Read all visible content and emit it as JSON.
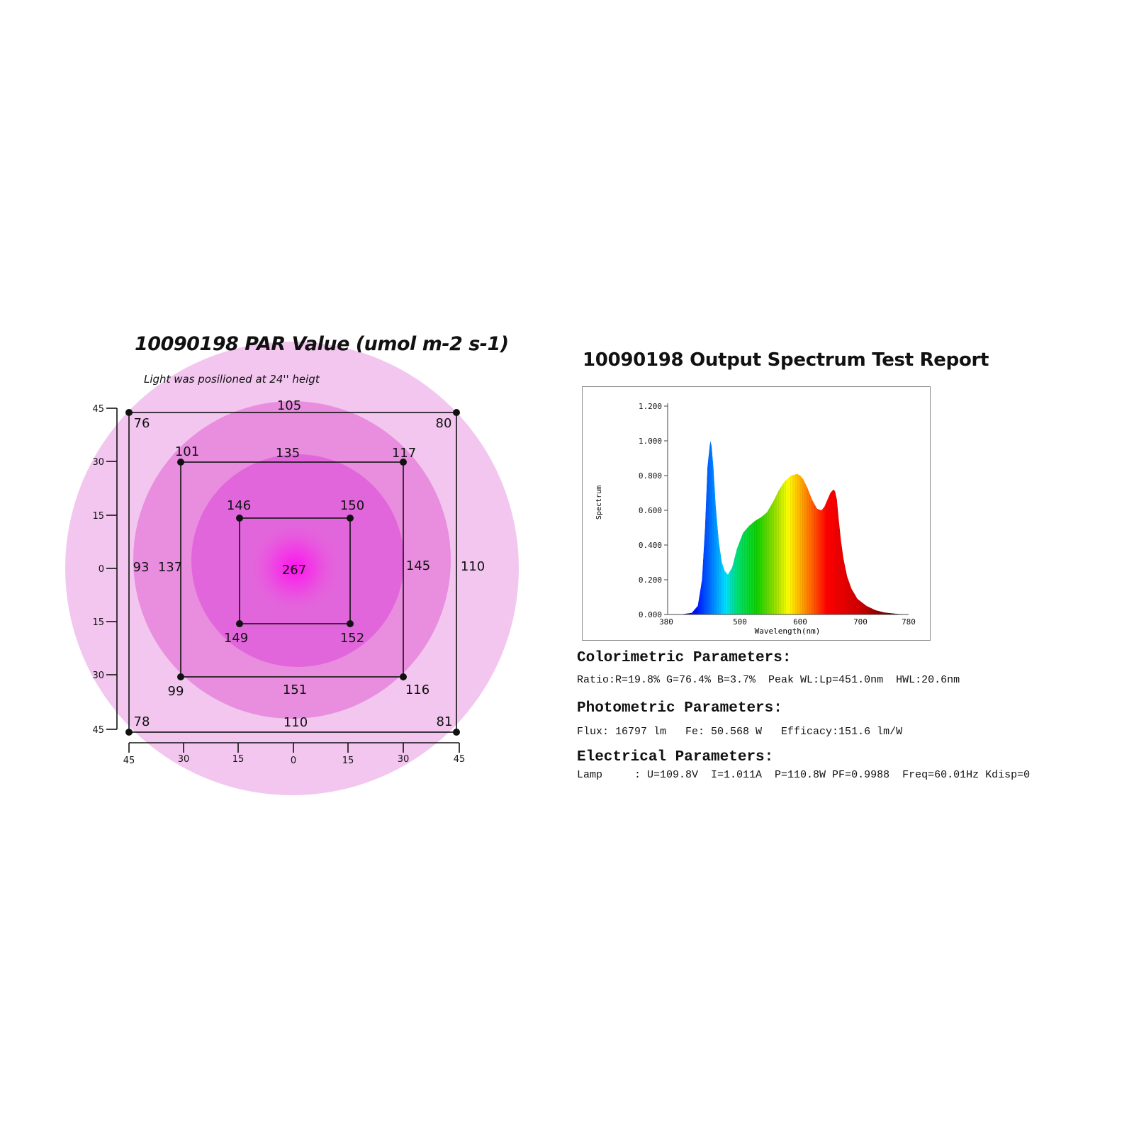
{
  "par_map": {
    "title": "10090198 PAR Value (umol m-2 s-1)",
    "subtitle": "Light was posilioned at 24'' heigt",
    "axis_ticks_left": [
      "45",
      "30",
      "15",
      "0",
      "15",
      "30",
      "45"
    ],
    "axis_ticks_bottom": [
      "45",
      "30",
      "15",
      "0",
      "15",
      "30",
      "45"
    ],
    "center_value": "267",
    "outer_square": {
      "top_left": "76",
      "top_mid": "105",
      "top_right": "80",
      "mid_left": "93",
      "mid_right": "110",
      "bottom_left": "78",
      "bottom_mid": "110",
      "bottom_right": "81"
    },
    "middle_square": {
      "top_left": "101",
      "top_mid": "135",
      "top_right": "117",
      "mid_left": "137",
      "mid_right": "145",
      "bottom_left": "99",
      "bottom_mid": "151",
      "bottom_right": "116"
    },
    "inner_square": {
      "top_left": "146",
      "top_right": "150",
      "bottom_left": "149",
      "bottom_right": "152"
    },
    "colors": {
      "outer_ring": "#f2c6ee",
      "middle_ring": "#e98ddf",
      "inner_ring": "#e266db",
      "center": "#ff20ee"
    }
  },
  "chart_data": {
    "type": "area",
    "title": "10090198 Output Spectrum Test Report",
    "xlabel": "Wavelength(nm)",
    "ylabel": "Spectrum",
    "xlim": [
      380,
      780
    ],
    "ylim": [
      0,
      1.2
    ],
    "x_ticks": [
      "380",
      "500",
      "600",
      "700",
      "780"
    ],
    "y_ticks": [
      "0.000",
      "0.200",
      "0.400",
      "0.600",
      "0.800",
      "1.000",
      "1.200"
    ],
    "series": [
      {
        "x": [
          400,
          420,
          430,
          437,
          442,
          446,
          450,
          451,
          453,
          456,
          460,
          465,
          470,
          475,
          480,
          487,
          495,
          505,
          515,
          525,
          535,
          545,
          555,
          565,
          575,
          585,
          595,
          600,
          605,
          612,
          620,
          628,
          635,
          640,
          645,
          650,
          655,
          658,
          661,
          664,
          668,
          672,
          678,
          685,
          695,
          710,
          725,
          740,
          760,
          780
        ],
        "values": [
          0.0,
          0.01,
          0.05,
          0.2,
          0.5,
          0.85,
          0.98,
          1.0,
          0.97,
          0.85,
          0.62,
          0.42,
          0.3,
          0.25,
          0.23,
          0.27,
          0.38,
          0.47,
          0.51,
          0.54,
          0.56,
          0.59,
          0.65,
          0.72,
          0.77,
          0.8,
          0.81,
          0.8,
          0.78,
          0.73,
          0.66,
          0.61,
          0.6,
          0.62,
          0.66,
          0.7,
          0.72,
          0.71,
          0.66,
          0.55,
          0.42,
          0.32,
          0.22,
          0.15,
          0.09,
          0.05,
          0.025,
          0.012,
          0.004,
          0.0
        ]
      }
    ]
  },
  "colorimetric": {
    "heading": "Colorimetric Parameters:",
    "line": "Ratio:R=19.8% G=76.4% B=3.7%  Peak WL:Lp=451.0nm  HWL:20.6nm"
  },
  "photometric": {
    "heading": "Photometric Parameters:",
    "line": "Flux: 16797 lm   Fe: 50.568 W   Efficacy:151.6 lm/W"
  },
  "electrical": {
    "heading": "Electrical Parameters:",
    "line": "Lamp     : U=109.8V  I=1.011A  P=110.8W PF=0.9988  Freq=60.01Hz Kdisp=0"
  }
}
